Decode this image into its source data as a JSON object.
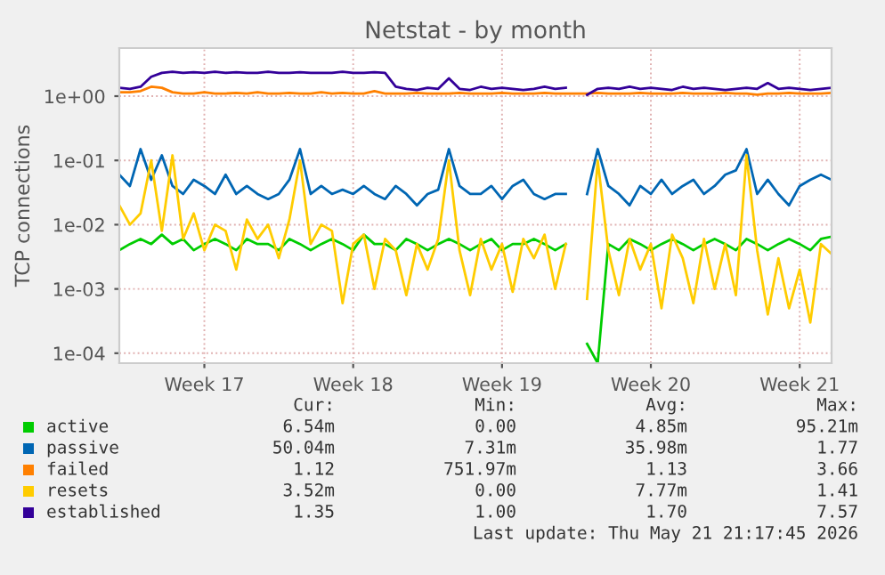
{
  "chart_data": {
    "type": "line",
    "title": "Netstat - by month",
    "ylabel": "TCP connections",
    "categories": [
      null,
      null,
      null,
      null,
      null,
      null,
      null,
      null,
      "Week 17",
      null,
      null,
      null,
      null,
      null,
      null,
      null,
      null,
      null,
      null,
      null,
      null,
      null,
      "Week 18",
      null,
      null,
      null,
      null,
      null,
      null,
      null,
      null,
      null,
      null,
      null,
      null,
      null,
      "Week 19",
      null,
      null,
      null,
      null,
      null,
      null,
      null,
      null,
      null,
      null,
      null,
      null,
      null,
      "Week 20",
      null,
      null,
      null,
      null,
      null,
      null,
      null,
      null,
      null,
      null,
      null,
      null,
      null,
      "Week 21",
      null,
      null,
      null
    ],
    "series": [
      {
        "name": "active",
        "color": "#00cc00",
        "values": [
          0.004,
          0.005,
          0.006,
          0.005,
          0.007,
          0.005,
          0.006,
          0.004,
          0.005,
          0.006,
          0.005,
          0.004,
          0.006,
          0.005,
          0.005,
          0.004,
          0.006,
          0.005,
          0.004,
          0.005,
          0.006,
          0.005,
          0.004,
          0.007,
          0.005,
          0.005,
          0.004,
          0.006,
          0.005,
          0.004,
          0.005,
          0.006,
          0.005,
          0.004,
          0.005,
          0.006,
          0.004,
          0.005,
          0.005,
          0.006,
          0.005,
          0.004,
          0.005,
          null,
          0.00014,
          7e-05,
          0.005,
          0.004,
          0.006,
          0.005,
          0.004,
          0.005,
          0.006,
          0.005,
          0.004,
          0.005,
          0.006,
          0.005,
          0.004,
          0.006,
          0.005,
          0.004,
          0.005,
          0.006,
          0.005,
          0.004,
          0.006,
          0.0065
        ]
      },
      {
        "name": "passive",
        "color": "#0066b3",
        "values": [
          0.06,
          0.04,
          0.15,
          0.05,
          0.12,
          0.04,
          0.03,
          0.05,
          0.04,
          0.03,
          0.06,
          0.03,
          0.04,
          0.03,
          0.025,
          0.03,
          0.05,
          0.15,
          0.03,
          0.04,
          0.03,
          0.035,
          0.03,
          0.04,
          0.03,
          0.025,
          0.04,
          0.03,
          0.02,
          0.03,
          0.035,
          0.15,
          0.04,
          0.03,
          0.03,
          0.04,
          0.025,
          0.04,
          0.05,
          0.03,
          0.025,
          0.03,
          0.03,
          null,
          0.03,
          0.15,
          0.04,
          0.03,
          0.02,
          0.04,
          0.03,
          0.05,
          0.03,
          0.04,
          0.05,
          0.03,
          0.04,
          0.06,
          0.07,
          0.15,
          0.03,
          0.05,
          0.03,
          0.02,
          0.04,
          0.05,
          0.06,
          0.05
        ]
      },
      {
        "name": "failed",
        "color": "#ff8000",
        "values": [
          1.15,
          1.15,
          1.2,
          1.4,
          1.35,
          1.15,
          1.1,
          1.1,
          1.15,
          1.1,
          1.1,
          1.12,
          1.1,
          1.15,
          1.1,
          1.1,
          1.12,
          1.1,
          1.1,
          1.15,
          1.1,
          1.12,
          1.1,
          1.1,
          1.2,
          1.1,
          1.1,
          1.1,
          1.12,
          1.1,
          1.1,
          1.1,
          1.12,
          1.1,
          1.1,
          1.1,
          1.12,
          1.1,
          1.1,
          1.1,
          1.12,
          1.1,
          1.1,
          1.1,
          1.1,
          1.12,
          1.1,
          1.1,
          1.1,
          1.12,
          1.1,
          1.1,
          1.1,
          1.12,
          1.1,
          1.1,
          1.1,
          1.12,
          1.1,
          1.1,
          1.05,
          1.1,
          1.1,
          1.12,
          1.1,
          1.1,
          1.1,
          1.12
        ]
      },
      {
        "name": "resets",
        "color": "#ffcc00",
        "values": [
          0.02,
          0.01,
          0.015,
          0.1,
          0.008,
          0.12,
          0.006,
          0.015,
          0.004,
          0.01,
          0.008,
          0.002,
          0.012,
          0.006,
          0.01,
          0.003,
          0.012,
          0.1,
          0.005,
          0.01,
          0.008,
          0.0006,
          0.005,
          0.007,
          0.001,
          0.006,
          0.004,
          0.0008,
          0.005,
          0.002,
          0.006,
          0.1,
          0.004,
          0.0008,
          0.006,
          0.002,
          0.005,
          0.0009,
          0.006,
          0.003,
          0.007,
          0.001,
          0.005,
          null,
          0.0007,
          0.1,
          0.004,
          0.0008,
          0.006,
          0.002,
          0.005,
          0.0005,
          0.007,
          0.003,
          0.0006,
          0.006,
          0.001,
          0.005,
          0.0008,
          0.12,
          0.004,
          0.0004,
          0.003,
          0.0005,
          0.002,
          0.0003,
          0.005,
          0.0035
        ]
      },
      {
        "name": "established",
        "color": "#330099",
        "values": [
          1.35,
          1.3,
          1.4,
          2.0,
          2.3,
          2.4,
          2.3,
          2.35,
          2.3,
          2.4,
          2.3,
          2.35,
          2.3,
          2.3,
          2.4,
          2.3,
          2.3,
          2.35,
          2.3,
          2.3,
          2.3,
          2.4,
          2.3,
          2.3,
          2.35,
          2.3,
          1.4,
          1.3,
          1.25,
          1.35,
          1.3,
          1.9,
          1.3,
          1.25,
          1.4,
          1.3,
          1.35,
          1.3,
          1.25,
          1.3,
          1.4,
          1.3,
          1.35,
          null,
          1.05,
          1.3,
          1.35,
          1.3,
          1.4,
          1.3,
          1.35,
          1.3,
          1.25,
          1.4,
          1.3,
          1.35,
          1.3,
          1.25,
          1.3,
          1.35,
          1.3,
          1.6,
          1.3,
          1.35,
          1.3,
          1.25,
          1.3,
          1.35
        ]
      }
    ],
    "log": "y",
    "ylim": [
      7e-05,
      5.6
    ],
    "yticks": [
      {
        "value": 0.0001,
        "label": "1e-04"
      },
      {
        "value": 0.001,
        "label": "1e-03"
      },
      {
        "value": 0.01,
        "label": "1e-02"
      },
      {
        "value": 0.1,
        "label": "1e-01"
      },
      {
        "value": 1,
        "label": "1e+00"
      }
    ],
    "grid": true,
    "legend": "bottom",
    "annotations": [
      "Cur:\tMin:\tAvg:\tMax:",
      "6.54m\t0.00\t4.85m\t95.21m",
      "50.04m\t7.31m\t35.98m\t1.77",
      "1.12\t751.97m\t1.13\t3.66",
      "3.52m\t0.00\t7.77m\t1.41",
      "1.35\t1.00\t1.70\t7.57",
      "Last update: Thu May 21 21:17:45 2026"
    ]
  }
}
